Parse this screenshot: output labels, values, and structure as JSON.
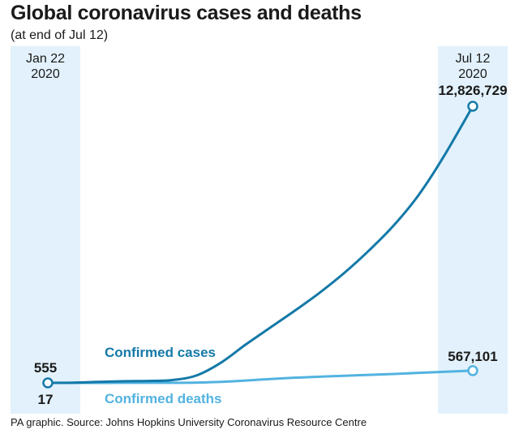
{
  "header": {
    "title": "Global coronavirus cases and deaths",
    "subtitle": "(at end of Jul 12)"
  },
  "footer": {
    "source": "PA graphic. Source: Johns Hopkins University Coronavirus Resource Centre"
  },
  "chart_data": {
    "type": "line",
    "title": "Global coronavirus cases and deaths",
    "subtitle": "(at end of Jul 12)",
    "x_start_label": [
      "Jan 22",
      "2020"
    ],
    "x_end_label": [
      "Jul 12",
      "2020"
    ],
    "x": [
      "2020-01-22",
      "2020-02-01",
      "2020-02-11",
      "2020-02-21",
      "2020-03-02",
      "2020-03-12",
      "2020-03-22",
      "2020-04-01",
      "2020-04-11",
      "2020-04-21",
      "2020-05-01",
      "2020-05-11",
      "2020-05-21",
      "2020-05-31",
      "2020-06-10",
      "2020-06-20",
      "2020-06-30",
      "2020-07-12"
    ],
    "series": [
      {
        "name": "Confirmed cases",
        "color": "#1479a8",
        "values": [
          555,
          12000,
          44000,
          77000,
          90000,
          128000,
          337000,
          932000,
          1770000,
          2560000,
          3350000,
          4180000,
          5100000,
          6140000,
          7300000,
          8700000,
          10450000,
          12826729
        ],
        "start_label": "555",
        "end_label": "12,826,729"
      },
      {
        "name": "Confirmed deaths",
        "color": "#52b3e0",
        "values": [
          17,
          259,
          1100,
          2250,
          3100,
          4700,
          14700,
          47000,
          108000,
          178000,
          239000,
          287000,
          330000,
          372000,
          414000,
          465000,
          512000,
          567101
        ],
        "start_label": "17",
        "end_label": "567,101"
      }
    ],
    "ylim": [
      0,
      13000000
    ],
    "grid": false,
    "legend": "inline labels",
    "highlight_color": "#e2f1fb"
  }
}
